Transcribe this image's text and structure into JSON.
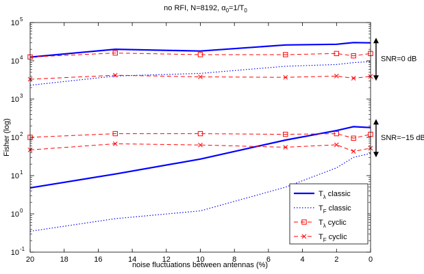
{
  "chart_data": {
    "type": "line",
    "title": "no RFI, N=8192, α₀=1/T₀",
    "title_parts": {
      "prefix": "no RFI, N=8192, α",
      "sub1": "0",
      "mid": "=1/T",
      "sub2": "0"
    },
    "xlabel": "noise fluctuations between antennas (%)",
    "ylabel": "Fisher (log)",
    "x_reversed": true,
    "xlim": [
      20,
      0
    ],
    "yscale": "log",
    "ylim": [
      0.1,
      100000
    ],
    "xticks": [
      20,
      18,
      16,
      14,
      12,
      10,
      8,
      6,
      4,
      2,
      0
    ],
    "yticks": [
      {
        "value": 0.1,
        "base": "10",
        "exp": "-1"
      },
      {
        "value": 1,
        "base": "10",
        "exp": "0"
      },
      {
        "value": 10,
        "base": "10",
        "exp": "1"
      },
      {
        "value": 100,
        "base": "10",
        "exp": "2"
      },
      {
        "value": 1000,
        "base": "10",
        "exp": "3"
      },
      {
        "value": 10000,
        "base": "10",
        "exp": "4"
      },
      {
        "value": 100000,
        "base": "10",
        "exp": "5"
      }
    ],
    "grid": false,
    "legend_position": "bottom-right",
    "series": [
      {
        "name": "Tλ classic",
        "legend_base": "T",
        "legend_sub": "λ",
        "legend_rest": " classic",
        "group": "SNR=0 dB",
        "style": "solid",
        "marker": "none",
        "color": "#0000ff",
        "width": 2.2,
        "x": [
          20,
          15,
          10,
          5,
          2,
          1,
          0
        ],
        "y": [
          12500,
          20000,
          18000,
          26000,
          27000,
          30000,
          29500
        ]
      },
      {
        "name": "TF classic",
        "legend_base": "T",
        "legend_sub": "F",
        "legend_rest": " classic",
        "group": "SNR=0 dB",
        "style": "dotted",
        "marker": "none",
        "color": "#0000ff",
        "width": 1.2,
        "x": [
          20,
          15,
          10,
          5,
          2,
          1,
          0
        ],
        "y": [
          2300,
          4000,
          4700,
          7200,
          8000,
          9000,
          9500
        ]
      },
      {
        "name": "Tλ cyclic",
        "legend_base": "T",
        "legend_sub": "λ",
        "legend_rest": " cyclic",
        "group": "SNR=0 dB",
        "style": "dashed",
        "marker": "square",
        "color": "#ff0000",
        "width": 1,
        "x": [
          20,
          15,
          10,
          5,
          2,
          1,
          0
        ],
        "y": [
          12600,
          16000,
          14500,
          14500,
          15500,
          13500,
          15500
        ]
      },
      {
        "name": "TF cyclic",
        "legend_base": "T",
        "legend_sub": "F",
        "legend_rest": " cyclic",
        "group": "SNR=0 dB",
        "style": "dashed",
        "marker": "x",
        "color": "#ff0000",
        "width": 1,
        "x": [
          20,
          15,
          10,
          5,
          2,
          1,
          0
        ],
        "y": [
          3300,
          4200,
          3800,
          3700,
          4000,
          3500,
          3900
        ]
      },
      {
        "name": "Tλ classic",
        "group": "SNR=-15 dB",
        "style": "solid",
        "marker": "none",
        "color": "#0000ff",
        "width": 2.2,
        "x": [
          20,
          15,
          10,
          5,
          2,
          1,
          0
        ],
        "y": [
          4.8,
          11,
          27,
          85,
          150,
          190,
          180
        ]
      },
      {
        "name": "TF classic",
        "group": "SNR=-15 dB",
        "style": "dotted",
        "marker": "none",
        "color": "#0000ff",
        "width": 1.2,
        "x": [
          20,
          15,
          10,
          5,
          2,
          1,
          0
        ],
        "y": [
          0.35,
          0.75,
          1.2,
          5,
          16,
          30,
          38
        ]
      },
      {
        "name": "Tλ cyclic",
        "group": "SNR=-15 dB",
        "style": "dashed",
        "marker": "square",
        "color": "#ff0000",
        "width": 1,
        "x": [
          20,
          15,
          10,
          5,
          2,
          1,
          0
        ],
        "y": [
          100,
          125,
          125,
          120,
          125,
          95,
          120
        ]
      },
      {
        "name": "TF cyclic",
        "group": "SNR=-15 dB",
        "style": "dashed",
        "marker": "x",
        "color": "#ff0000",
        "width": 1,
        "x": [
          20,
          15,
          10,
          5,
          2,
          1,
          0
        ],
        "y": [
          47,
          68,
          63,
          55,
          64,
          43,
          52
        ]
      }
    ],
    "annotations": [
      {
        "text": "SNR=0 dB",
        "y_range": [
          3000,
          40000
        ],
        "y_text": 11500
      },
      {
        "text": "SNR=−15 dB",
        "y_range": [
          30,
          300
        ],
        "y_text": 100
      }
    ]
  }
}
